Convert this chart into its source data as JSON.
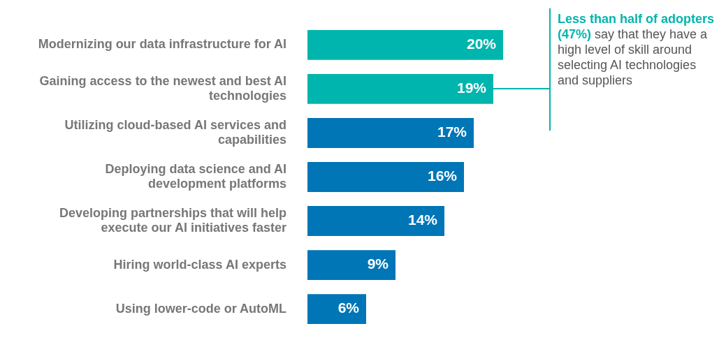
{
  "chart_data": {
    "type": "bar",
    "orientation": "horizontal",
    "legend": false,
    "tick_labels": "y",
    "value_labels": [
      "20%",
      "19%",
      "17%",
      "16%",
      "14%",
      "9%",
      "6%"
    ],
    "categories": [
      "Modernizing our data infrastructure for AI",
      "Gaining access to the newest and best AI technologies",
      "Utilizing cloud-based AI services and capabilities",
      "Deploying data science and AI development platforms",
      "Developing partnerships that will help execute our AI initiatives faster",
      "Hiring world-class AI experts",
      "Using lower-code or AutoML"
    ],
    "values": [
      20,
      19,
      17,
      16,
      14,
      9,
      6
    ],
    "colors": [
      "#00b5ad",
      "#00b5ad",
      "#0076b6",
      "#0076b6",
      "#0076b6",
      "#0076b6",
      "#0076b6"
    ],
    "annotations": [
      "Less than half of adopters (47%)",
      "say that they have a high level of skill around selecting AI technologies and suppliers"
    ]
  }
}
